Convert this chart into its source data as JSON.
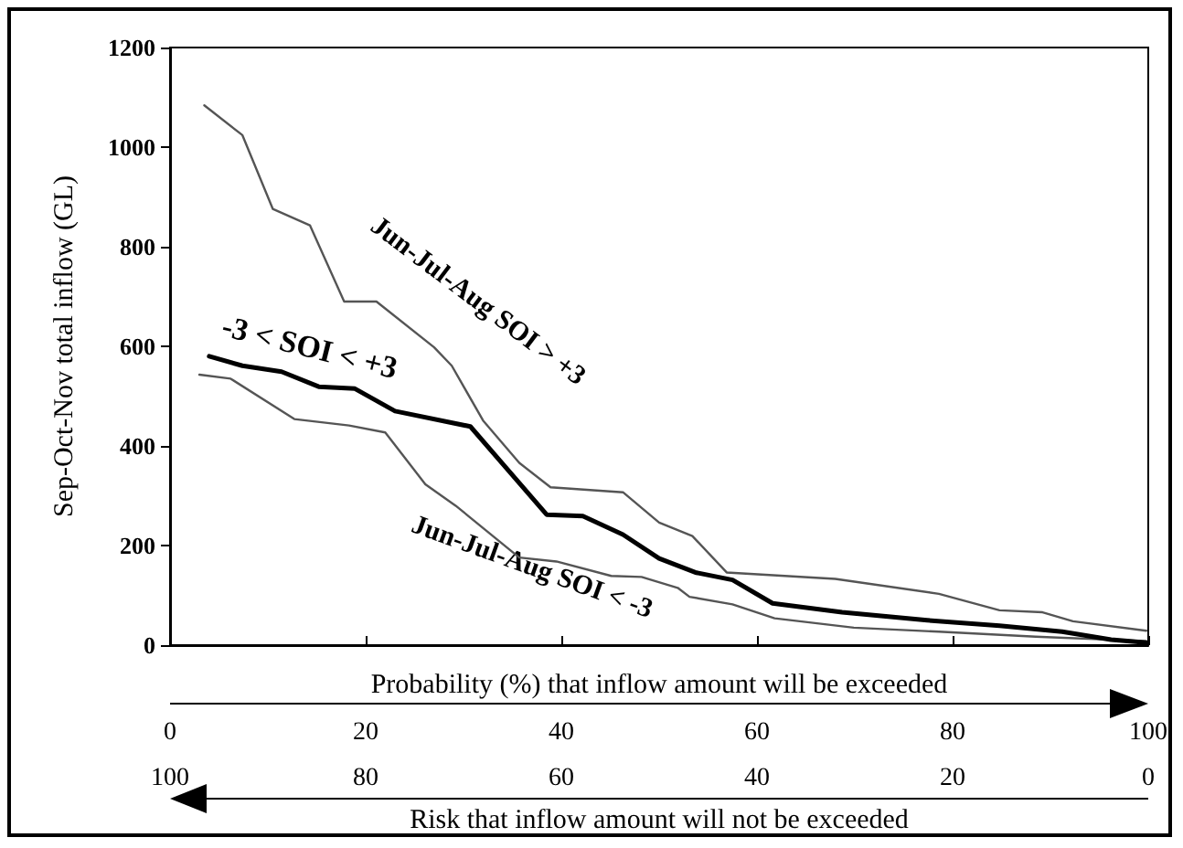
{
  "chart_data": {
    "type": "line",
    "xlabel": "Probability (%) that inflow amount will be exceeded",
    "ylabel": "Sep-Oct-Nov total inflow (GL)",
    "x2label": "Risk that inflow amount will not be exceeded",
    "xlim": [
      0,
      100
    ],
    "xticks": [
      0,
      20,
      40,
      60,
      80,
      100
    ],
    "x2lim": [
      100,
      0
    ],
    "x2ticks": [
      100,
      80,
      60,
      40,
      20,
      0
    ],
    "ylim": [
      0,
      1200
    ],
    "yticks": [
      0,
      200,
      400,
      600,
      800,
      1000,
      1200
    ],
    "grid": false,
    "legend": false,
    "marker": "none",
    "series": [
      {
        "name": "Jun-Jul-Aug SOI > +3",
        "color": "#555555",
        "x": [
          3.5,
          7.4,
          10.5,
          14.3,
          17.8,
          21.1,
          27,
          28.8,
          32,
          35.7,
          38.9,
          46.3,
          50,
          53.4,
          56.9,
          68,
          78.6,
          84.8,
          89.2,
          92.3,
          99.8
        ],
        "values": [
          1084,
          1024,
          876,
          843,
          690,
          690,
          598,
          561,
          451,
          366,
          317,
          307,
          246,
          219,
          146,
          133,
          103,
          70,
          66,
          48,
          29
        ]
      },
      {
        "name": "-3 < SOI < +3",
        "color": "#000000",
        "x": [
          4,
          7.4,
          11.4,
          15.2,
          18.9,
          23,
          30.7,
          38.5,
          42.2,
          46.3,
          50,
          53.7,
          57.5,
          61.6,
          68.7,
          77.4,
          84.8,
          91.2,
          96.2,
          99.8
        ],
        "values": [
          580,
          561,
          549,
          519,
          515,
          470,
          439,
          262,
          259,
          222,
          174,
          146,
          131,
          84,
          66,
          50,
          39,
          27,
          11,
          5
        ]
      },
      {
        "name": "Jun-Jul-Aug SOI < -3",
        "color": "#555555",
        "x": [
          3,
          6.2,
          12.7,
          18.3,
          22,
          26.1,
          29.2,
          35.7,
          39.5,
          45.1,
          48.2,
          51.9,
          53.1,
          57.5,
          61.8,
          69.9,
          78.6,
          88.5,
          99.8
        ],
        "values": [
          543,
          535,
          454,
          441,
          427,
          323,
          280,
          176,
          168,
          139,
          137,
          115,
          97,
          82,
          54,
          35,
          27,
          17,
          8
        ]
      }
    ]
  }
}
